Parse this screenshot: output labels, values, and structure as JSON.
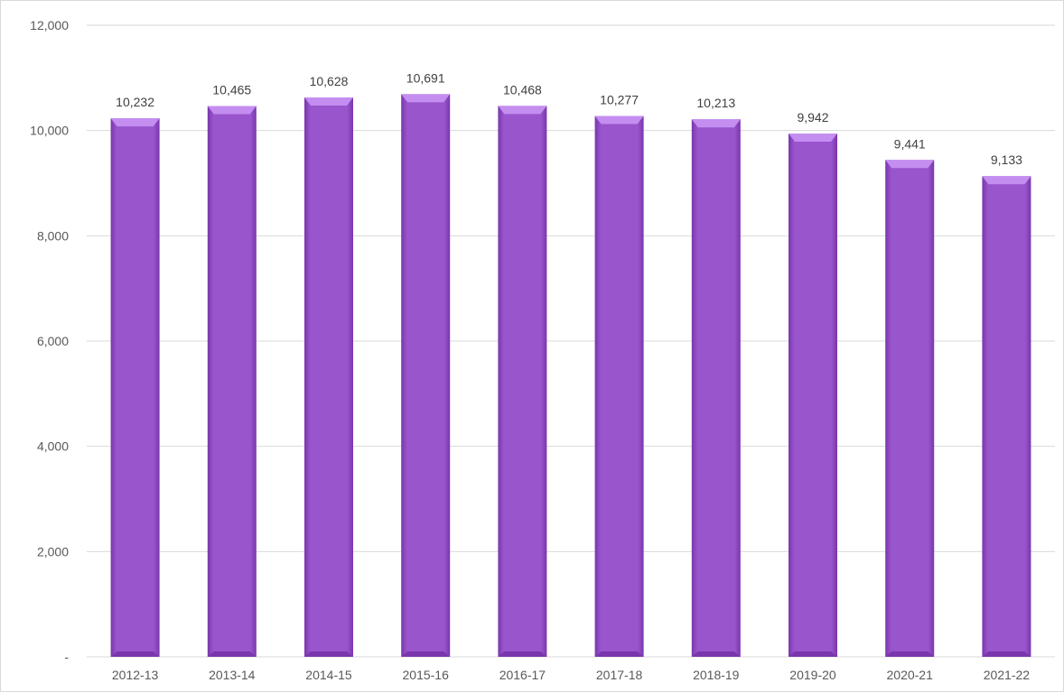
{
  "chart_data": {
    "type": "bar",
    "categories": [
      "2012-13",
      "2013-14",
      "2014-15",
      "2015-16",
      "2016-17",
      "2017-18",
      "2018-19",
      "2019-20",
      "2020-21",
      "2021-22"
    ],
    "values": [
      10232,
      10465,
      10628,
      10691,
      10468,
      10277,
      10213,
      9942,
      9441,
      9133
    ],
    "data_labels": [
      "10,232",
      "10,465",
      "10,628",
      "10,691",
      "10,468",
      "10,277",
      "10,213",
      "9,942",
      "9,441",
      "9,133"
    ],
    "y_ticks": [
      0,
      2000,
      4000,
      6000,
      8000,
      10000,
      12000
    ],
    "y_tick_labels": [
      "-",
      "2,000",
      "4,000",
      "6,000",
      "8,000",
      "10,000",
      "12,000"
    ],
    "ylim": [
      0,
      12000
    ],
    "title": "",
    "xlabel": "",
    "ylabel": "",
    "grid": true,
    "legend": "none",
    "bar_color": "#9955cc",
    "bar_color_dark": "#7a36ad",
    "bar_color_light": "#c48ef0"
  }
}
